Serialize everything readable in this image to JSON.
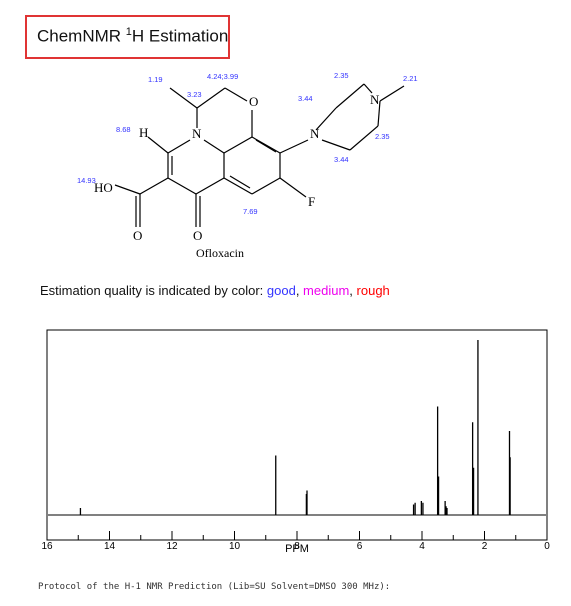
{
  "header": {
    "title_prefix": "ChemNMR ",
    "title_sup": "1",
    "title_suffix": "H Estimation"
  },
  "molecule": {
    "name": "Ofloxacin",
    "atoms": {
      "n1": "N",
      "n2": "N",
      "n3": "N",
      "o_ring": "O",
      "o_ketone": "O",
      "o_acid": "O",
      "ho": "HO",
      "h": "H",
      "f": "F"
    },
    "shifts": {
      "s1": "1.19",
      "s2": "4.24;3.99",
      "s3": "3.23",
      "s4": "8.68",
      "s5": "14.93",
      "s6": "7.69",
      "s7": "2.35",
      "s8": "2.21",
      "s9": "3.44",
      "s10": "2.35",
      "s11": "3.44"
    }
  },
  "quality": {
    "prefix": "Estimation quality is indicated by color: ",
    "good": "good",
    "sep1": ", ",
    "medium": "medium",
    "sep2": ", ",
    "rough": "rough",
    "colors": {
      "good": "#3333ff",
      "medium": "#ee00ee",
      "rough": "#ff0000"
    }
  },
  "chart_data": {
    "type": "line",
    "xlabel": "PPM",
    "xlim": [
      16,
      0
    ],
    "x_reversed": true,
    "x_ticks": [
      16,
      14,
      12,
      10,
      8,
      6,
      4,
      2,
      0
    ],
    "ylim": [
      0,
      100
    ],
    "grid": false,
    "peaks": [
      {
        "ppm": 14.93,
        "height": 4
      },
      {
        "ppm": 8.68,
        "height": 34
      },
      {
        "ppm": 7.7,
        "height": 12
      },
      {
        "ppm": 7.68,
        "height": 14
      },
      {
        "ppm": 4.27,
        "height": 6
      },
      {
        "ppm": 4.22,
        "height": 7
      },
      {
        "ppm": 4.02,
        "height": 8
      },
      {
        "ppm": 3.97,
        "height": 7
      },
      {
        "ppm": 3.5,
        "height": 62
      },
      {
        "ppm": 3.47,
        "height": 22
      },
      {
        "ppm": 3.26,
        "height": 8
      },
      {
        "ppm": 3.23,
        "height": 5
      },
      {
        "ppm": 3.2,
        "height": 4
      },
      {
        "ppm": 2.38,
        "height": 53
      },
      {
        "ppm": 2.35,
        "height": 27
      },
      {
        "ppm": 2.21,
        "height": 100
      },
      {
        "ppm": 1.2,
        "height": 48
      },
      {
        "ppm": 1.18,
        "height": 33
      }
    ]
  },
  "protocol": {
    "text": "Protocol of the H-1 NMR Prediction (Lib=SU Solvent=DMSO 300 MHz):"
  }
}
